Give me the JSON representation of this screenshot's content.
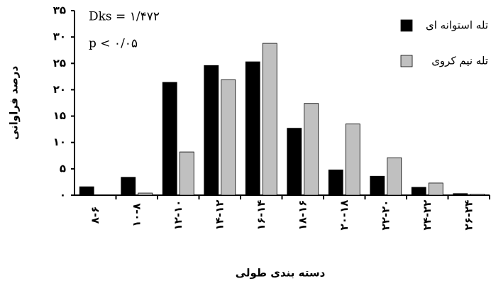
{
  "chart_data": {
    "type": "bar",
    "x_label": "دسته بندی طولی",
    "y_label": "درصد فراوانی",
    "annotations": [
      "Dks = ۱/۴۷۲",
      "p < ۰/۰۵"
    ],
    "categories": [
      "۸-۶",
      "۱۰-۸",
      "۱۲-۱۰",
      "۱۴-۱۲",
      "۱۶-۱۴",
      "۱۸-۱۶",
      "۲۰-۱۸",
      "۲۲-۲۰",
      "۲۴-۲۲",
      "۲۶-۲۴"
    ],
    "series": [
      {
        "name": "تله استوانه ای",
        "color": "#000000",
        "values": [
          1.6,
          3.4,
          21.4,
          24.6,
          25.3,
          12.7,
          4.8,
          3.6,
          1.5,
          0.3
        ]
      },
      {
        "name": "تله نیم کروی",
        "color": "#c0c0c0",
        "values": [
          0,
          0.4,
          8.2,
          21.9,
          28.8,
          17.4,
          13.5,
          7.1,
          2.3,
          0.2
        ]
      }
    ],
    "ylim": [
      0,
      35
    ],
    "yticks": [
      {
        "value": 0,
        "label": "۰"
      },
      {
        "value": 5,
        "label": "۵"
      },
      {
        "value": 10,
        "label": "۱۰"
      },
      {
        "value": 15,
        "label": "۱۵"
      },
      {
        "value": 20,
        "label": "۲۰"
      },
      {
        "value": 25,
        "label": "۲۵"
      },
      {
        "value": 30,
        "label": "۳۰"
      },
      {
        "value": 35,
        "label": "۳۵"
      }
    ],
    "legend": "top-right"
  }
}
